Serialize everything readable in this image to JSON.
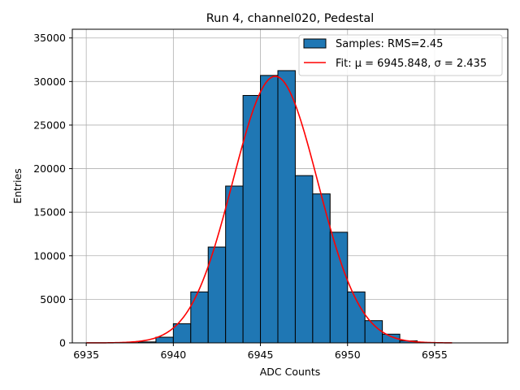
{
  "chart_data": {
    "type": "bar",
    "title": "Run 4, channel020, Pedestal",
    "xlabel": "ADC Counts",
    "ylabel": "Entries",
    "xlim": [
      6934.2,
      6959.2
    ],
    "ylim": [
      0,
      36000
    ],
    "xticks": [
      6935,
      6940,
      6945,
      6950,
      6955
    ],
    "yticks": [
      0,
      5000,
      10000,
      15000,
      20000,
      25000,
      30000,
      35000
    ],
    "grid": true,
    "legend_position": "top-right",
    "bin_width": 1,
    "bins": {
      "left_edges": [
        6937,
        6938,
        6939,
        6940,
        6941,
        6942,
        6943,
        6944,
        6945,
        6946,
        6947,
        6948,
        6949,
        6950,
        6951,
        6952,
        6953
      ],
      "counts": [
        30,
        110,
        650,
        2200,
        5850,
        11000,
        18000,
        28400,
        30700,
        31250,
        19200,
        17100,
        12700,
        5850,
        2550,
        1000,
        230
      ]
    },
    "fit": {
      "mu": 6945.848,
      "sigma": 2.435,
      "amplitude": 30600,
      "x_range": [
        6935,
        6956
      ]
    },
    "colors": {
      "bars": "#1f77b4",
      "bar_edge": "#000000",
      "fit_line": "#ff0000",
      "grid": "#b0b0b0"
    },
    "legend": [
      {
        "label": "Samples: RMS=2.45",
        "kind": "bar"
      },
      {
        "label": "Fit: μ = 6945.848, σ = 2.435",
        "kind": "line"
      }
    ]
  }
}
